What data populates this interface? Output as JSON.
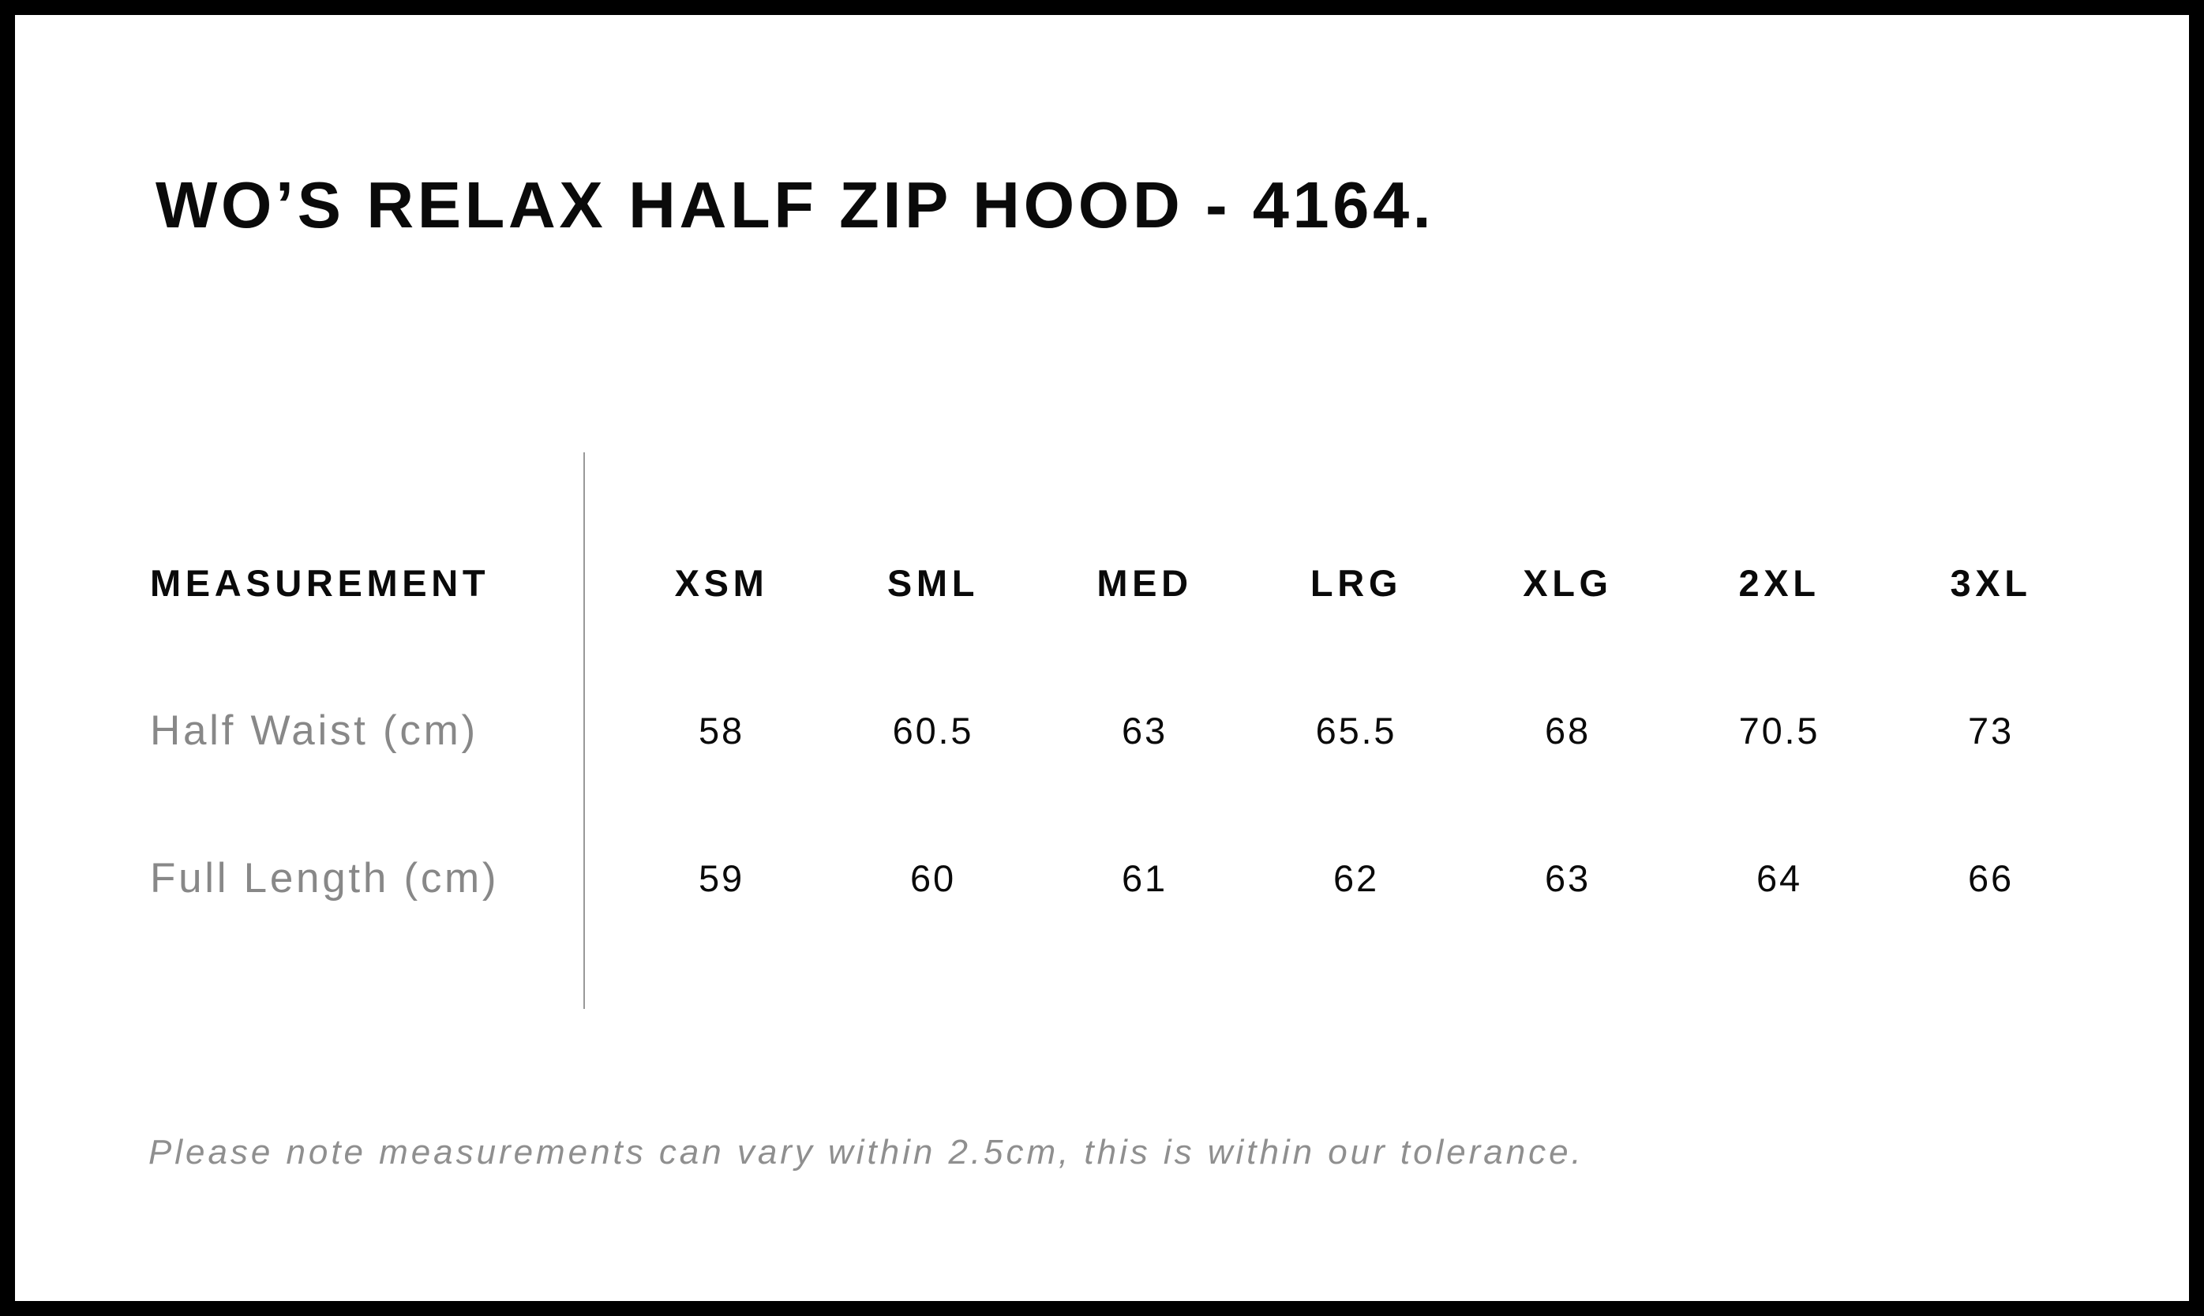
{
  "page": {
    "title": "WO’S RELAX HALF ZIP HOOD - 4164.",
    "note": "Please note measurements can vary within 2.5cm, this is within our tolerance."
  },
  "size_chart": {
    "measurement_label": "MEASUREMENT",
    "sizes": [
      "XSM",
      "SML",
      "MED",
      "LRG",
      "XLG",
      "2XL",
      "3XL"
    ],
    "rows": [
      {
        "label": "Half Waist (cm)",
        "values": [
          "58",
          "60.5",
          "63",
          "65.5",
          "68",
          "70.5",
          "73"
        ]
      },
      {
        "label": "Full Length (cm)",
        "values": [
          "59",
          "60",
          "61",
          "62",
          "63",
          "64",
          "66"
        ]
      }
    ]
  },
  "chart_data": {
    "type": "table",
    "title": "WO’S RELAX HALF ZIP HOOD - 4164.",
    "columns": [
      "MEASUREMENT",
      "XSM",
      "SML",
      "MED",
      "LRG",
      "XLG",
      "2XL",
      "3XL"
    ],
    "rows": [
      [
        "Half Waist (cm)",
        58,
        60.5,
        63,
        65.5,
        68,
        70.5,
        73
      ],
      [
        "Full Length (cm)",
        59,
        60,
        61,
        62,
        63,
        64,
        66
      ]
    ],
    "footnote": "Please note measurements can vary within 2.5cm, this is within our tolerance."
  },
  "colors": {
    "frame": "#000000",
    "background": "#ffffff",
    "text_primary": "#0a0a0a",
    "text_muted_label": "#888888",
    "text_note": "#8f8f8f",
    "divider": "#999999"
  }
}
